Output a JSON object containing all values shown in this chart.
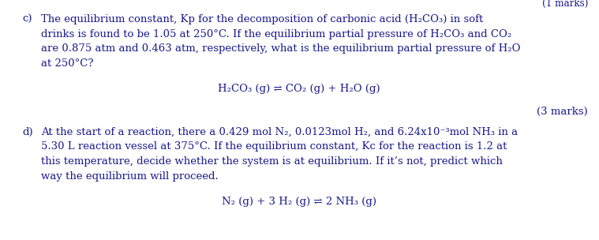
{
  "bg_color": "#ffffff",
  "text_color": "#1a1a8c",
  "font_size": 9.5,
  "part_c_label": "c)",
  "part_c_text_line1": "The equilibrium constant, Kp for the decomposition of carbonic acid (H₂CO₃) in soft",
  "part_c_text_line2": "drinks is found to be 1.05 at 250°C. If the equilibrium partial pressure of H₂CO₃ and CO₂",
  "part_c_text_line3": "are 0.875 atm and 0.463 atm, respectively, what is the equilibrium partial pressure of H₂O",
  "part_c_text_line4": "at 250°C?",
  "equation_c": "H₂CO₃ (g) ⇌ CO₂ (g) + H₂O (g)",
  "marks_c": "(3 marks)",
  "part_d_label": "d)",
  "part_d_text_line1": "At the start of a reaction, there a 0.429 mol N₂, 0.0123mol H₂, and 6.24x10⁻³mol NH₃ in a",
  "part_d_text_line2": "5.30 L reaction vessel at 375°C. If the equilibrium constant, Kc for the reaction is 1.2 at",
  "part_d_text_line3": "this temperature, decide whether the system is at equilibrium. If it’s not, predict which",
  "part_d_text_line4": "way the equilibrium will proceed.",
  "equation_d": "N₂ (g) + 3 H₂ (g) ⇌ 2 NH₃ (g)"
}
